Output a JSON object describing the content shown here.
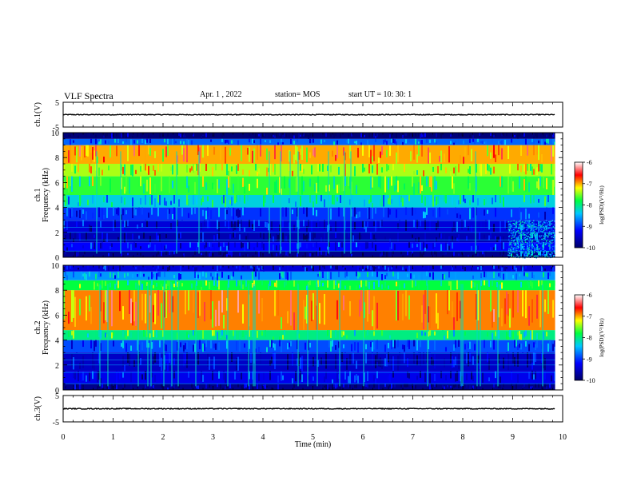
{
  "header": {
    "title": "VLF Spectra",
    "date": "Apr. 1 , 2022",
    "station": "station= MOS",
    "start": "start  UT =   10: 30: 1"
  },
  "chart_data": [
    {
      "type": "line",
      "name": "waveform-ch1",
      "ylabel": "ch.1(V)",
      "ytick_labels": [
        "5",
        "-5"
      ],
      "ylim": [
        -5,
        5
      ],
      "xlim": [
        0,
        10
      ],
      "baseline_value": 0,
      "end_time": 9.85
    },
    {
      "type": "heatmap",
      "name": "spectrogram-ch1",
      "ylabel": "ch.1\nFrequency (kHz)",
      "y_ticks": [
        0,
        2,
        4,
        6,
        8,
        10
      ],
      "ylim": [
        0,
        10
      ],
      "xlim": [
        0,
        10
      ],
      "end_time": 9.85,
      "colorbar": {
        "label": "log(PSD)(V²/Hz)",
        "ticks": [
          -6,
          -7,
          -8,
          -9,
          -10
        ],
        "range": [
          -10,
          -6
        ]
      },
      "bands": [
        {
          "from": 0,
          "to": 0.5,
          "level": -9.8
        },
        {
          "from": 0.5,
          "to": 1.2,
          "level": -9.2
        },
        {
          "from": 1.2,
          "to": 2.0,
          "level": -9.6
        },
        {
          "from": 2.0,
          "to": 3.0,
          "level": -9.4
        },
        {
          "from": 3.0,
          "to": 4.0,
          "level": -9.0
        },
        {
          "from": 4.0,
          "to": 5.0,
          "level": -8.3
        },
        {
          "from": 5.0,
          "to": 6.5,
          "level": -7.7
        },
        {
          "from": 6.5,
          "to": 7.5,
          "level": -7.4
        },
        {
          "from": 7.5,
          "to": 9.0,
          "level": -7.0
        },
        {
          "from": 9.0,
          "to": 9.5,
          "level": -8.8
        },
        {
          "from": 9.5,
          "to": 10,
          "level": -9.9
        }
      ],
      "late_segment": {
        "from_time": 8.9,
        "level": -8.6,
        "max_freq": 3.0
      }
    },
    {
      "type": "heatmap",
      "name": "spectrogram-ch2",
      "ylabel": "ch.2\nFrequency (kHz)",
      "y_ticks": [
        0,
        2,
        4,
        6,
        8,
        10
      ],
      "ylim": [
        0,
        10
      ],
      "xlim": [
        0,
        10
      ],
      "end_time": 9.85,
      "colorbar": {
        "label": "log(PSD)(V²/Hz)",
        "ticks": [
          -6,
          -7,
          -8,
          -9,
          -10
        ],
        "range": [
          -10,
          -6
        ]
      },
      "bands": [
        {
          "from": 0,
          "to": 0.5,
          "level": -9.8
        },
        {
          "from": 0.5,
          "to": 1.5,
          "level": -9.3
        },
        {
          "from": 1.5,
          "to": 3.0,
          "level": -9.5
        },
        {
          "from": 3.0,
          "to": 4.0,
          "level": -8.9
        },
        {
          "from": 4.0,
          "to": 4.8,
          "level": -8.0
        },
        {
          "from": 4.8,
          "to": 8.0,
          "level": -6.9
        },
        {
          "from": 8.0,
          "to": 8.8,
          "level": -7.8
        },
        {
          "from": 8.8,
          "to": 9.5,
          "level": -8.6
        },
        {
          "from": 9.5,
          "to": 10,
          "level": -9.4
        }
      ]
    },
    {
      "type": "line",
      "name": "waveform-ch3",
      "ylabel": "ch.3(V)",
      "ytick_labels": [
        "5",
        "-5"
      ],
      "ylim": [
        -5,
        5
      ],
      "xlim": [
        0,
        10
      ],
      "baseline_value": 0,
      "end_time": 9.85
    }
  ],
  "x_axis": {
    "label": "Time  (min)",
    "ticks": [
      0,
      1,
      2,
      3,
      4,
      5,
      6,
      7,
      8,
      9,
      10
    ]
  }
}
